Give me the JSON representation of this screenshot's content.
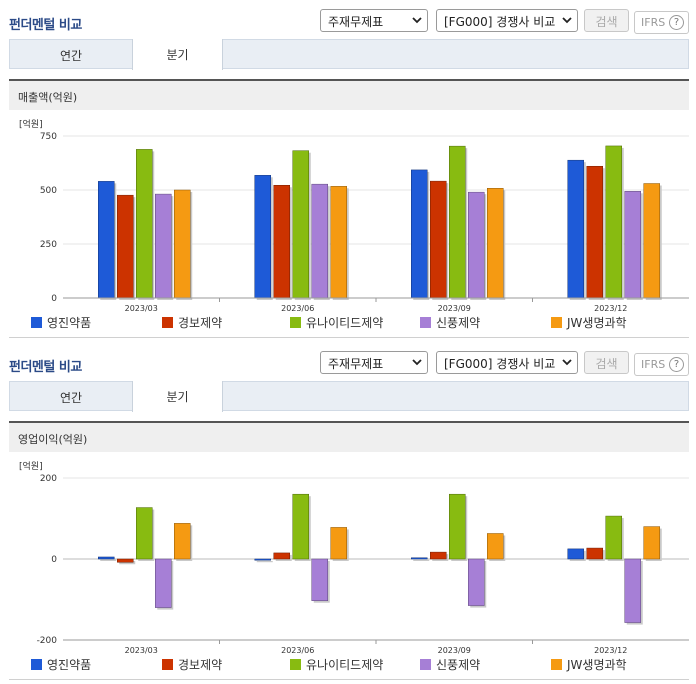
{
  "panels": [
    {
      "title": "펀더멘털 비교",
      "select_report": "주재무제표",
      "select_compare": "[FG000] 경쟁사 비교",
      "search_label": "검색",
      "ifrs_label": "IFRS",
      "help_glyph": "?",
      "tabs": [
        {
          "label": "연간"
        },
        {
          "label": "분기"
        }
      ],
      "active_tab": 1,
      "section_title": "매출액(억원)"
    },
    {
      "title": "펀더멘털 비교",
      "select_report": "주재무제표",
      "select_compare": "[FG000] 경쟁사 비교",
      "search_label": "검색",
      "ifrs_label": "IFRS",
      "help_glyph": "?",
      "tabs": [
        {
          "label": "연간"
        },
        {
          "label": "분기"
        }
      ],
      "active_tab": 1,
      "section_title": "영업이익(억원)"
    }
  ],
  "legend": [
    {
      "name": "영진약품",
      "color": "#1e5ad7"
    },
    {
      "name": "경보제약",
      "color": "#cc3300"
    },
    {
      "name": "유나이티드제약",
      "color": "#88bb11"
    },
    {
      "name": "신풍제약",
      "color": "#a67fd6"
    },
    {
      "name": "JW생명과학",
      "color": "#f59a12"
    }
  ],
  "chart_data": [
    {
      "type": "bar",
      "unit_label": "[억원]",
      "categories": [
        "2023/03",
        "2023/06",
        "2023/09",
        "2023/12"
      ],
      "yticks": [
        0,
        250,
        500,
        750
      ],
      "ylim": [
        0,
        750
      ],
      "grid": true,
      "series": [
        {
          "name": "영진약품",
          "values": [
            540,
            568,
            593,
            638
          ]
        },
        {
          "name": "경보제약",
          "values": [
            476,
            522,
            541,
            610
          ]
        },
        {
          "name": "유나이티드제약",
          "values": [
            688,
            682,
            703,
            704
          ]
        },
        {
          "name": "신풍제약",
          "values": [
            481,
            527,
            490,
            494
          ]
        },
        {
          "name": "JW생명과학",
          "values": [
            500,
            517,
            508,
            530
          ]
        }
      ]
    },
    {
      "type": "bar",
      "unit_label": "[억원]",
      "categories": [
        "2023/03",
        "2023/06",
        "2023/09",
        "2023/12"
      ],
      "yticks": [
        200,
        0,
        -200
      ],
      "ylim": [
        -200,
        200
      ],
      "grid": true,
      "series": [
        {
          "name": "영진약품",
          "values": [
            5,
            -3,
            3,
            25
          ]
        },
        {
          "name": "경보제약",
          "values": [
            -8,
            15,
            17,
            27
          ]
        },
        {
          "name": "유나이티드제약",
          "values": [
            127,
            160,
            160,
            106
          ]
        },
        {
          "name": "신풍제약",
          "values": [
            -120,
            -103,
            -115,
            -157
          ]
        },
        {
          "name": "JW생명과학",
          "values": [
            88,
            78,
            63,
            80
          ]
        }
      ]
    }
  ]
}
